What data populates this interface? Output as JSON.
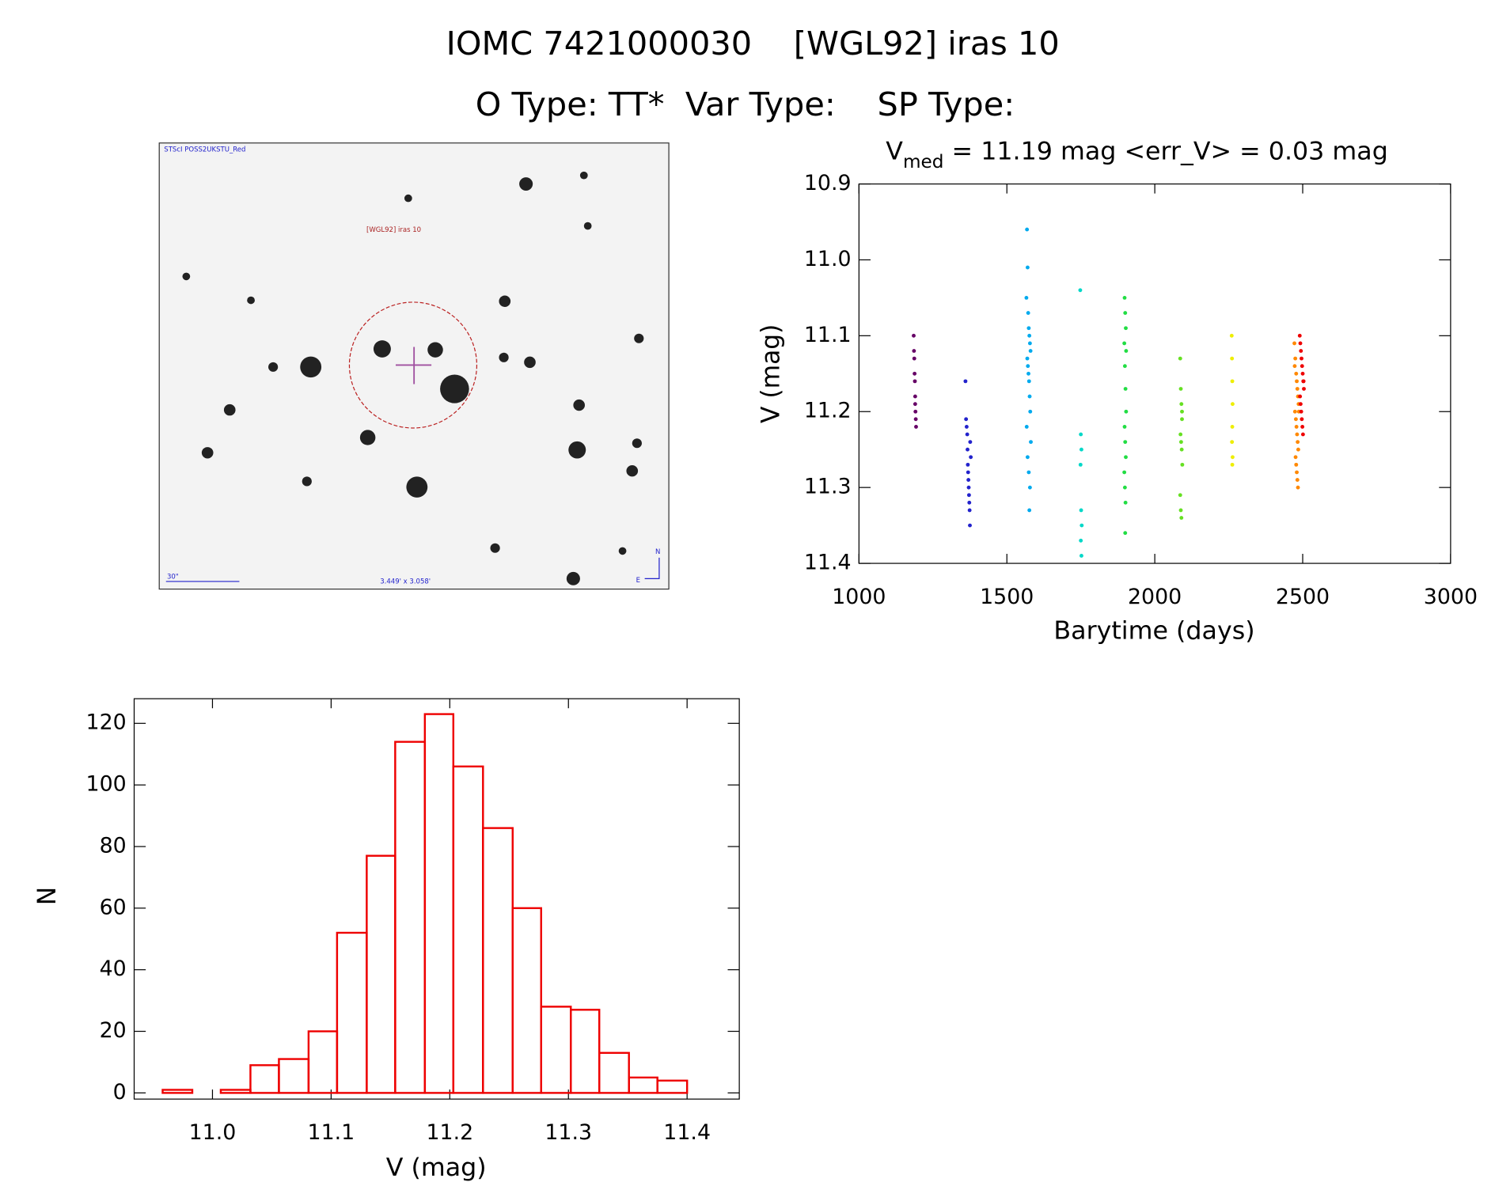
{
  "header": {
    "title": "IOMC 7421000030    [WGL92] iras 10",
    "subtitle": "O Type: TT*  Var Type:    SP Type:"
  },
  "image": {
    "caption": "STScI POSS2UKSTU_Red",
    "target": "[WGL92] iras 10",
    "scale": "30\"",
    "size": "3.449' x 3.058'",
    "north": "N",
    "east": "E"
  },
  "chart_data": [
    {
      "type": "scatter",
      "title": "V",
      "title_sub": "med",
      "title_rest": " = 11.19 mag <err_V> = 0.03 mag",
      "xlabel": "Barytime (days)",
      "ylabel": "V (mag)",
      "xlim": [
        1000,
        3000
      ],
      "xticks": [
        1000,
        1500,
        2000,
        2500,
        3000
      ],
      "ylim": [
        10.9,
        11.4
      ],
      "y_inverted": true,
      "yticks": [
        {
          "value": 10.9,
          "label": "10.9"
        },
        {
          "value": 11.0,
          "label": "11.0"
        },
        {
          "value": 11.1,
          "label": "11.1"
        },
        {
          "value": 11.2,
          "label": "11.2"
        },
        {
          "value": 11.3,
          "label": "11.3"
        },
        {
          "value": 11.4,
          "label": "11.4"
        }
      ],
      "series": [
        {
          "color": "#660066",
          "x": [
            1185,
            1186,
            1187,
            1188,
            1189,
            1190,
            1190,
            1191,
            1192,
            1193
          ],
          "values": [
            11.1,
            11.12,
            11.13,
            11.15,
            11.16,
            11.18,
            11.19,
            11.2,
            11.21,
            11.22
          ]
        },
        {
          "color": "#2222cc",
          "x": [
            1360,
            1362,
            1364,
            1366,
            1367,
            1368,
            1369,
            1370,
            1371,
            1372,
            1373,
            1374,
            1375,
            1376,
            1378
          ],
          "values": [
            11.16,
            11.21,
            11.22,
            11.23,
            11.25,
            11.27,
            11.28,
            11.29,
            11.3,
            11.31,
            11.32,
            11.33,
            11.35,
            11.24,
            11.26
          ]
        },
        {
          "color": "#00aaee",
          "x": [
            1568,
            1570,
            1566,
            1572,
            1574,
            1576,
            1578,
            1580,
            1569,
            1571,
            1573,
            1575,
            1577,
            1579,
            1567,
            1581,
            1570,
            1574,
            1578,
            1576
          ],
          "values": [
            10.96,
            11.01,
            11.05,
            11.07,
            11.09,
            11.1,
            11.11,
            11.12,
            11.13,
            11.14,
            11.15,
            11.16,
            11.18,
            11.2,
            11.22,
            11.24,
            11.26,
            11.28,
            11.3,
            11.33
          ]
        },
        {
          "color": "#00d8c8",
          "x": [
            1748,
            1750,
            1752,
            1749,
            1751,
            1753,
            1750,
            1752
          ],
          "values": [
            11.04,
            11.23,
            11.25,
            11.27,
            11.33,
            11.35,
            11.37,
            11.39
          ]
        },
        {
          "color": "#22dd44",
          "x": [
            1898,
            1900,
            1902,
            1897,
            1899,
            1901,
            1903,
            1898,
            1900,
            1902,
            1897,
            1899,
            1901,
            1900,
            1903
          ],
          "values": [
            11.05,
            11.07,
            11.09,
            11.11,
            11.14,
            11.17,
            11.2,
            11.22,
            11.24,
            11.26,
            11.28,
            11.3,
            11.32,
            11.36,
            11.12
          ]
        },
        {
          "color": "#66e022",
          "x": [
            2086,
            2088,
            2090,
            2092,
            2087,
            2089,
            2091,
            2093,
            2086,
            2088,
            2090,
            2092
          ],
          "values": [
            11.13,
            11.17,
            11.19,
            11.21,
            11.23,
            11.24,
            11.25,
            11.27,
            11.31,
            11.33,
            11.34,
            11.2
          ]
        },
        {
          "color": "#eeee00",
          "x": [
            2260,
            2261,
            2262,
            2263,
            2262,
            2261,
            2263,
            2262
          ],
          "values": [
            11.1,
            11.13,
            11.16,
            11.19,
            11.22,
            11.24,
            11.26,
            11.27
          ]
        },
        {
          "color": "#ff8800",
          "x": [
            2472,
            2475,
            2478,
            2480,
            2482,
            2484,
            2486,
            2474,
            2477,
            2479,
            2481,
            2483,
            2485,
            2476,
            2478,
            2480,
            2482,
            2484,
            2473,
            2487
          ],
          "values": [
            11.11,
            11.13,
            11.15,
            11.16,
            11.17,
            11.18,
            11.19,
            11.2,
            11.21,
            11.22,
            11.23,
            11.24,
            11.25,
            11.26,
            11.27,
            11.28,
            11.29,
            11.3,
            11.14,
            11.2
          ]
        },
        {
          "color": "#ee0000",
          "x": [
            2490,
            2492,
            2494,
            2496,
            2498,
            2500,
            2502,
            2504,
            2491,
            2493,
            2495,
            2497,
            2499,
            2501,
            2503
          ],
          "values": [
            11.1,
            11.11,
            11.12,
            11.13,
            11.14,
            11.15,
            11.16,
            11.17,
            11.18,
            11.19,
            11.2,
            11.21,
            11.22,
            11.23,
            11.16
          ]
        }
      ]
    },
    {
      "type": "histogram",
      "xlabel": "V (mag)",
      "ylabel": "N",
      "color": "#ee0000",
      "bins": [
        10.958,
        10.983,
        11.007,
        11.032,
        11.056,
        11.081,
        11.105,
        11.13,
        11.154,
        11.179,
        11.203,
        11.228,
        11.253,
        11.277,
        11.302,
        11.326,
        11.351,
        11.375,
        11.4
      ],
      "values": [
        1,
        0,
        1,
        9,
        11,
        20,
        52,
        77,
        114,
        123,
        106,
        86,
        60,
        28,
        27,
        13,
        5,
        4
      ],
      "xlim": [
        10.934,
        11.444
      ],
      "xticks": [
        {
          "value": 11.0,
          "label": "11.0"
        },
        {
          "value": 11.1,
          "label": "11.1"
        },
        {
          "value": 11.2,
          "label": "11.2"
        },
        {
          "value": 11.3,
          "label": "11.3"
        },
        {
          "value": 11.4,
          "label": "11.4"
        }
      ],
      "ylim": [
        -2,
        128
      ],
      "yticks": [
        0,
        20,
        40,
        60,
        80,
        100,
        120
      ]
    }
  ]
}
